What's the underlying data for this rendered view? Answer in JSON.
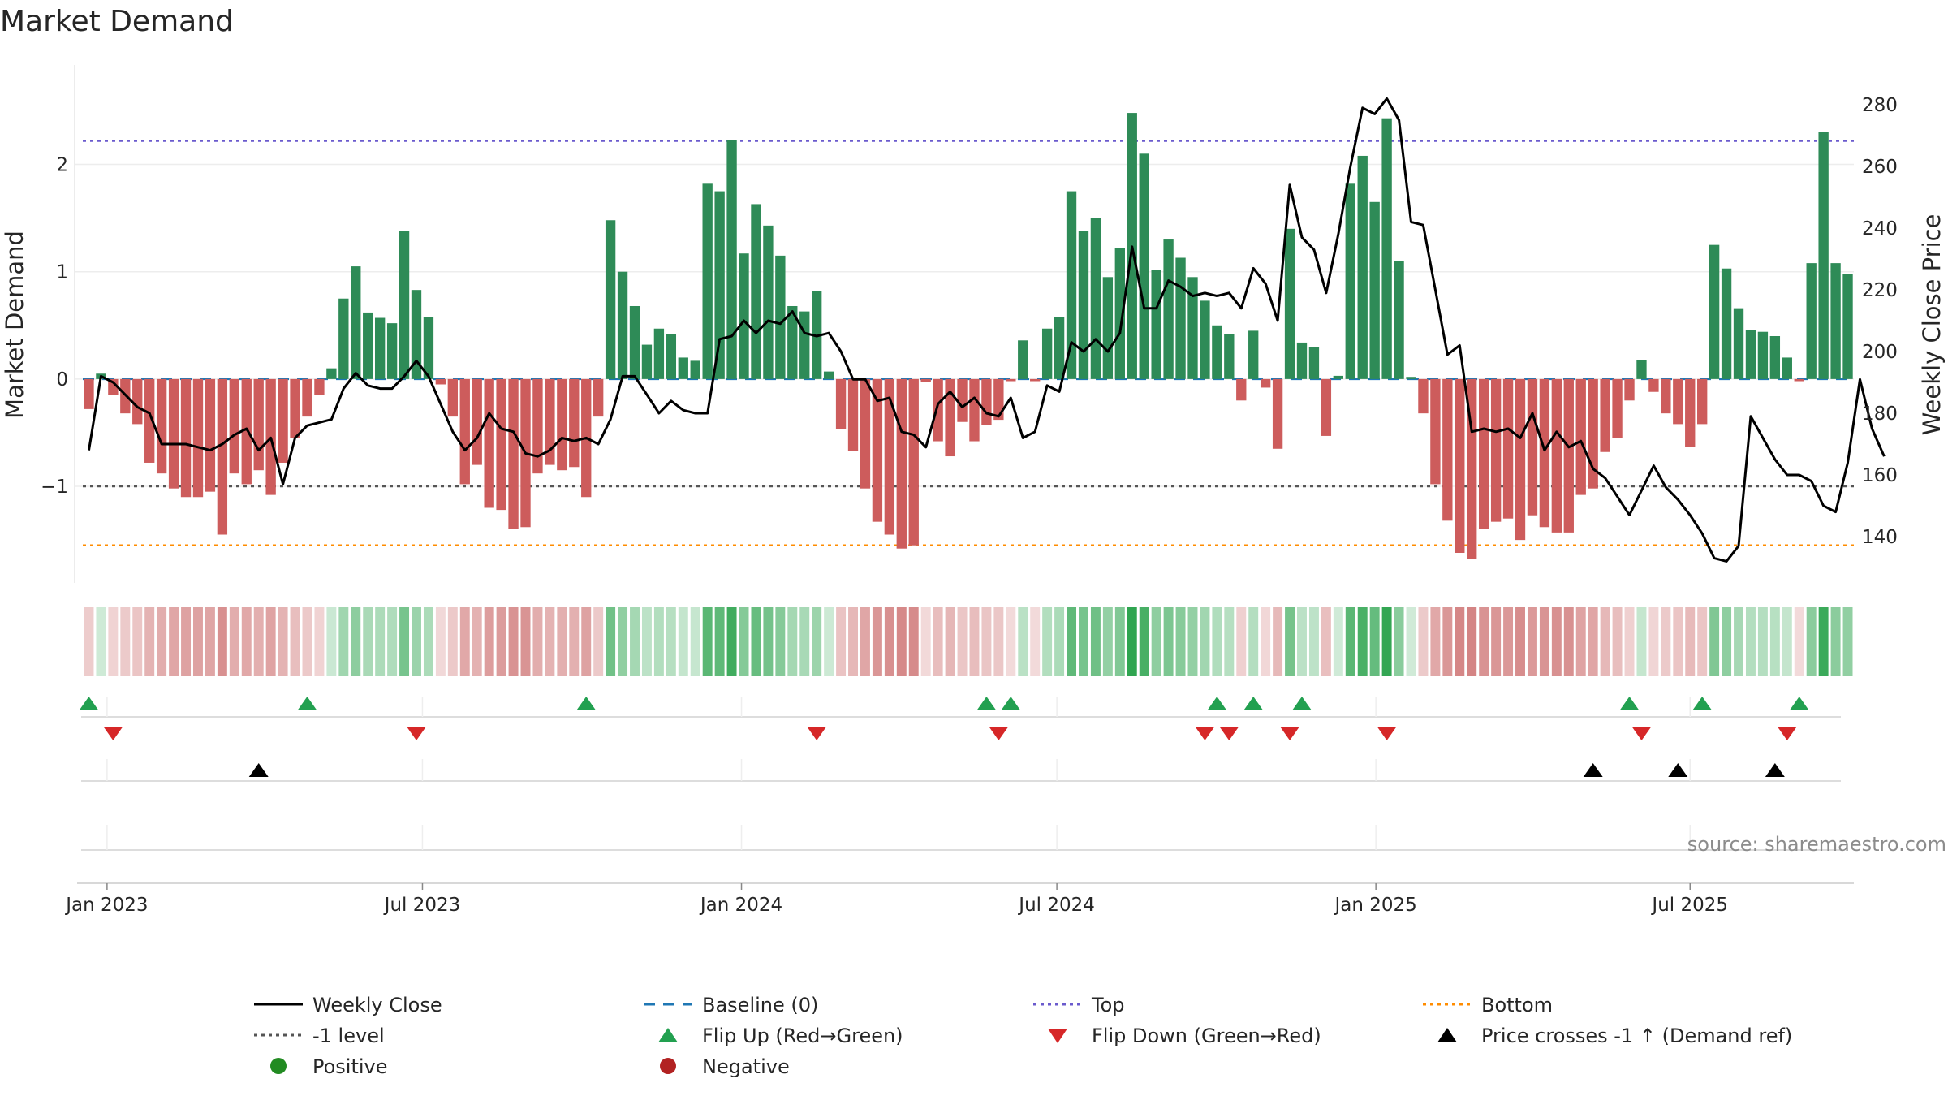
{
  "chart_data": {
    "type": "bar",
    "title": "Market Demand",
    "ylabel": "Market Demand",
    "y2label": "Weekly Close Price",
    "source": "source: sharemaestro.com",
    "ylim": [
      -1.9,
      2.7
    ],
    "y2lim": [
      125,
      285
    ],
    "yticks": [
      -1,
      0,
      1,
      2
    ],
    "y2ticks": [
      140,
      160,
      180,
      200,
      220,
      240,
      260,
      280
    ],
    "ytick_labels": [
      "−1",
      "0",
      "1",
      "2"
    ],
    "y2tick_labels": [
      "140",
      "160",
      "180",
      "200",
      "220",
      "240",
      "260",
      "280"
    ],
    "xticks": [
      {
        "label": "Jan 2023",
        "week": 2
      },
      {
        "label": "Jul 2023",
        "week": 28
      },
      {
        "label": "Jan 2024",
        "week": 54.3
      },
      {
        "label": "Jul 2024",
        "week": 80.3
      },
      {
        "label": "Jan 2025",
        "week": 106.6
      },
      {
        "label": "Jul 2025",
        "week": 132.5
      }
    ],
    "reference_lines": {
      "top": 2.22,
      "minus_one": -1.0,
      "bottom": -1.55,
      "baseline": 0
    },
    "colors": {
      "positive": "#2e8b57",
      "negative": "#cd5c5c",
      "price": "#000000",
      "baseline": "#1f77b4",
      "top": "#6a5acd",
      "minus_one": "#555555",
      "bottom": "#ff8c00",
      "flip_up": "#22a050",
      "flip_down": "#d62728",
      "cross": "#000000",
      "positive_dot": "#228b22",
      "negative_dot": "#b22222"
    },
    "demand": [
      -0.28,
      0.05,
      -0.15,
      -0.32,
      -0.42,
      -0.78,
      -0.88,
      -1.02,
      -1.1,
      -1.1,
      -1.05,
      -1.45,
      -0.88,
      -0.98,
      -0.85,
      -1.08,
      -0.78,
      -0.55,
      -0.35,
      -0.15,
      0.1,
      0.75,
      1.05,
      0.62,
      0.57,
      0.52,
      1.38,
      0.83,
      0.58,
      -0.05,
      -0.35,
      -0.98,
      -0.8,
      -1.2,
      -1.22,
      -1.4,
      -1.38,
      -0.88,
      -0.8,
      -0.85,
      -0.82,
      -1.1,
      -0.35,
      1.48,
      1.0,
      0.68,
      0.32,
      0.47,
      0.42,
      0.2,
      0.17,
      1.82,
      1.75,
      2.23,
      1.17,
      1.63,
      1.43,
      1.15,
      0.68,
      0.63,
      0.82,
      0.07,
      -0.47,
      -0.67,
      -1.02,
      -1.33,
      -1.45,
      -1.58,
      -1.55,
      -0.03,
      -0.58,
      -0.72,
      -0.4,
      -0.58,
      -0.43,
      -0.38,
      -0.02,
      0.36,
      -0.02,
      0.47,
      0.58,
      1.75,
      1.38,
      1.5,
      0.95,
      1.22,
      2.48,
      2.1,
      1.02,
      1.3,
      1.13,
      0.95,
      0.73,
      0.5,
      0.42,
      -0.2,
      0.45,
      -0.08,
      -0.65,
      1.4,
      0.34,
      0.3,
      -0.53,
      0.03,
      1.82,
      2.08,
      1.65,
      2.43,
      1.1,
      0.02,
      -0.32,
      -0.98,
      -1.32,
      -1.62,
      -1.68,
      -1.4,
      -1.33,
      -1.3,
      -1.5,
      -1.27,
      -1.38,
      -1.43,
      -1.43,
      -1.08,
      -1.02,
      -0.68,
      -0.55,
      -0.2,
      0.18,
      -0.12,
      -0.32,
      -0.42,
      -0.63,
      -0.42,
      1.25,
      1.03,
      0.66,
      0.46,
      0.44,
      0.4,
      0.2,
      -0.02,
      1.08,
      2.3,
      1.08,
      0.98
    ],
    "price": [
      168,
      192,
      190,
      186,
      182,
      180,
      170,
      170,
      170,
      169,
      168,
      170,
      173,
      175,
      168,
      172,
      157,
      172,
      176,
      177,
      178,
      188,
      193,
      189,
      188,
      188,
      192,
      197,
      192,
      183,
      174,
      168,
      172,
      180,
      175,
      174,
      167,
      166,
      168,
      172,
      171,
      172,
      170,
      178,
      192,
      192,
      186,
      180,
      184,
      181,
      180,
      180,
      204,
      205,
      210,
      206,
      210,
      209,
      213,
      206,
      205,
      206,
      200,
      191,
      191,
      184,
      185,
      174,
      173,
      169,
      183,
      187,
      182,
      185,
      180,
      179,
      185,
      172,
      174,
      189,
      187,
      203,
      200,
      204,
      200,
      206,
      234,
      214,
      214,
      223,
      221,
      218,
      219,
      218,
      219,
      214,
      227,
      222,
      210,
      254,
      237,
      233,
      219,
      238,
      260,
      279,
      277,
      282,
      275,
      242,
      241,
      220,
      199,
      202,
      174,
      175,
      174,
      175,
      172,
      180,
      168,
      174,
      169,
      171,
      162,
      159,
      153,
      147,
      155,
      163,
      156,
      152,
      147,
      141,
      133,
      132,
      137,
      179,
      172,
      165,
      160,
      160,
      158,
      150,
      148,
      164,
      191,
      175,
      166
    ]
  },
  "indicator_rows": {
    "flip_up_weeks": [
      1,
      19,
      42,
      75,
      77,
      94,
      97,
      101,
      128,
      134,
      142
    ],
    "flip_down_weeks": [
      3,
      28,
      61,
      76,
      93,
      95,
      100,
      108,
      129,
      141
    ],
    "cross_weeks": [
      15,
      125,
      132,
      140
    ]
  },
  "legend": {
    "weekly_close": "Weekly Close",
    "baseline": "Baseline (0)",
    "top": "Top",
    "bottom": "Bottom",
    "minus_one": "-1 level",
    "flip_up": "Flip Up (Red→Green)",
    "flip_down": "Flip Down (Green→Red)",
    "cross": "Price crosses -1 ↑ (Demand ref)",
    "positive": "Positive",
    "negative": "Negative"
  }
}
